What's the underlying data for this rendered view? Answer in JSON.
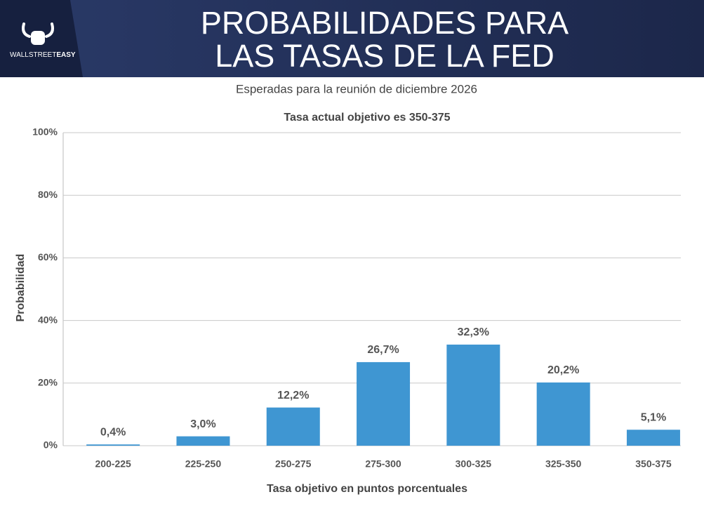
{
  "header": {
    "title_lines": [
      "PROBABILIDADES PARA",
      "LAS TASAS DE LA FED"
    ],
    "brand": [
      "WALLSTREET",
      "EASY"
    ]
  },
  "subtitle": "Esperadas para la reunión de diciembre 2026",
  "chart_data": {
    "type": "bar",
    "title": "Tasa actual objetivo es 350-375",
    "x_label": "Tasa objetivo en puntos porcentuales",
    "y_label": "Probabilidad",
    "categories": [
      "200-225",
      "225-250",
      "250-275",
      "275-300",
      "300-325",
      "325-350",
      "350-375"
    ],
    "values": [
      0.4,
      3.0,
      12.2,
      26.7,
      32.3,
      20.2,
      5.1
    ],
    "value_labels": [
      "0,4%",
      "3,0%",
      "12,2%",
      "26,7%",
      "32,3%",
      "20,2%",
      "5,1%"
    ],
    "color": "#3f96d2",
    "ylim": [
      0,
      100
    ],
    "yticks": [
      {
        "value": 0,
        "label": "0%"
      },
      {
        "value": 20,
        "label": "20%"
      },
      {
        "value": 40,
        "label": "40%"
      },
      {
        "value": 60,
        "label": "60%"
      },
      {
        "value": 80,
        "label": "80%"
      },
      {
        "value": 100,
        "label": "100%"
      }
    ],
    "grid": true
  }
}
